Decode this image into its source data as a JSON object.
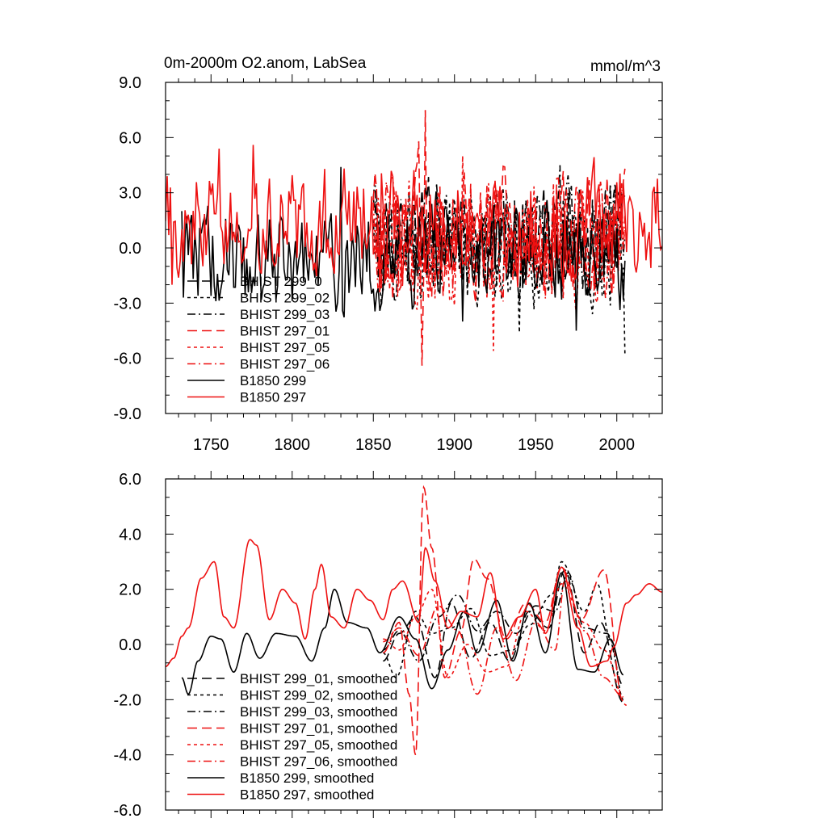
{
  "chart_data": [
    {
      "type": "line",
      "title": "0m-2000m O2.anom, LabSea",
      "units": "mmol/m^3",
      "xlim": [
        1722,
        2028
      ],
      "ylim": [
        -9,
        9
      ],
      "x_ticks": [
        1750,
        1800,
        1850,
        1900,
        1950,
        2000
      ],
      "x_tick_labels": [
        "1750",
        "1800",
        "1850",
        "1900",
        "1950",
        "2000"
      ],
      "y_ticks": [
        9,
        6,
        3,
        0,
        -3,
        -6,
        -9
      ],
      "y_tick_labels": [
        "9.0",
        "6.0",
        "3.0",
        "0.0",
        "-3.0",
        "-6.0",
        "-9.0"
      ],
      "legend_position": "bottom-left",
      "series": [
        {
          "name": "BHIST 299_0",
          "color": "#000000",
          "dash": "long-dash",
          "x_start": 1850,
          "x_end": 2005,
          "seed": 11,
          "amp": 2.2,
          "base": 0.5,
          "features": []
        },
        {
          "name": "BHIST 299_02",
          "color": "#000000",
          "dash": "short-dash",
          "x_start": 1850,
          "x_end": 2005,
          "seed": 23,
          "amp": 2.4,
          "base": 0.3,
          "features": [
            [
              2005,
              -5.8
            ],
            [
              1940,
              -4.6
            ]
          ]
        },
        {
          "name": "BHIST 299_03",
          "color": "#000000",
          "dash": "dash-dot",
          "x_start": 1850,
          "x_end": 2005,
          "seed": 37,
          "amp": 2.2,
          "base": 0.4,
          "features": [
            [
              1965,
              4.5
            ]
          ]
        },
        {
          "name": "BHIST 297_01",
          "color": "#ee1111",
          "dash": "long-dash",
          "x_start": 1850,
          "x_end": 2005,
          "seed": 41,
          "amp": 2.6,
          "base": 0.6,
          "features": [
            [
              1882,
              7.5
            ],
            [
              1878,
              5.8
            ],
            [
              1880,
              -6.4
            ]
          ]
        },
        {
          "name": "BHIST 297_05",
          "color": "#ee1111",
          "dash": "short-dash",
          "x_start": 1850,
          "x_end": 2005,
          "seed": 53,
          "amp": 2.5,
          "base": 0.5,
          "features": [
            [
              1924,
              -5.6
            ],
            [
              1905,
              5.0
            ]
          ]
        },
        {
          "name": "BHIST 297_06",
          "color": "#ee1111",
          "dash": "dash-dot",
          "x_start": 1850,
          "x_end": 2005,
          "seed": 67,
          "amp": 2.4,
          "base": 0.5,
          "features": [
            [
              1990,
              3.6
            ]
          ]
        },
        {
          "name": "B1850 299",
          "color": "#000000",
          "dash": "solid",
          "x_start": 1732,
          "x_end": 2005,
          "seed": 79,
          "amp": 2.0,
          "base": -0.6,
          "features": [
            [
              1732,
              2.0
            ],
            [
              1830,
              4.4
            ],
            [
              1975,
              -4.5
            ],
            [
              1905,
              -4.0
            ]
          ]
        },
        {
          "name": "B1850 297",
          "color": "#ee1111",
          "dash": "solid",
          "x_start": 1722,
          "x_end": 2028,
          "seed": 83,
          "amp": 2.2,
          "base": 1.4,
          "features": [
            [
              1726,
              -2.0
            ],
            [
              1755,
              5.4
            ],
            [
              1776,
              5.6
            ],
            [
              1820,
              4.3
            ],
            [
              1854,
              -2.4
            ],
            [
              2028,
              0.1
            ],
            [
              2022,
              3.0
            ]
          ]
        }
      ]
    },
    {
      "type": "line",
      "title": "",
      "units": "",
      "xlim": [
        1722,
        2028
      ],
      "ylim": [
        -6,
        6
      ],
      "x_ticks": [
        1750,
        1800,
        1850,
        1900,
        1950,
        2000
      ],
      "x_tick_labels": [],
      "y_ticks": [
        6,
        4,
        2,
        0,
        -2,
        -4,
        -6
      ],
      "y_tick_labels": [
        "6.0",
        "4.0",
        "2.0",
        "0.0",
        "-2.0",
        "-4.0",
        "-6.0"
      ],
      "legend_position": "bottom-left",
      "series": [
        {
          "name": "BHIST 299_01, smoothed",
          "color": "#000000",
          "dash": "long-dash",
          "x_start": 1856,
          "x_end": 2004,
          "knots": [
            [
              1856,
              -0.6
            ],
            [
              1866,
              0.4
            ],
            [
              1876,
              1.0
            ],
            [
              1888,
              -1.2
            ],
            [
              1898,
              1.5
            ],
            [
              1910,
              -0.5
            ],
            [
              1922,
              0.8
            ],
            [
              1934,
              -0.6
            ],
            [
              1946,
              1.2
            ],
            [
              1958,
              0.6
            ],
            [
              1968,
              2.7
            ],
            [
              1980,
              -0.3
            ],
            [
              1990,
              0.8
            ],
            [
              2004,
              -2.1
            ]
          ]
        },
        {
          "name": "BHIST 299_02, smoothed",
          "color": "#000000",
          "dash": "short-dash",
          "x_start": 1856,
          "x_end": 2004,
          "knots": [
            [
              1856,
              -0.3
            ],
            [
              1864,
              -1.2
            ],
            [
              1876,
              1.2
            ],
            [
              1886,
              0.4
            ],
            [
              1898,
              0.6
            ],
            [
              1910,
              1.3
            ],
            [
              1922,
              -0.4
            ],
            [
              1936,
              -0.2
            ],
            [
              1946,
              0.7
            ],
            [
              1960,
              1.8
            ],
            [
              1966,
              3.0
            ],
            [
              1980,
              1.2
            ],
            [
              1988,
              2.2
            ],
            [
              1996,
              0.2
            ],
            [
              2004,
              -2.0
            ]
          ]
        },
        {
          "name": "BHIST 299_03, smoothed",
          "color": "#000000",
          "dash": "dash-dot",
          "x_start": 1856,
          "x_end": 2004,
          "knots": [
            [
              1856,
              -0.2
            ],
            [
              1866,
              0.5
            ],
            [
              1878,
              -0.6
            ],
            [
              1890,
              1.0
            ],
            [
              1902,
              1.8
            ],
            [
              1914,
              0.5
            ],
            [
              1926,
              1.2
            ],
            [
              1938,
              0.4
            ],
            [
              1950,
              1.4
            ],
            [
              1962,
              1.2
            ],
            [
              1970,
              2.6
            ],
            [
              1980,
              0.6
            ],
            [
              1994,
              0.4
            ],
            [
              2004,
              -1.5
            ]
          ]
        },
        {
          "name": "BHIST 297_01, smoothed",
          "color": "#ee1111",
          "dash": "long-dash",
          "x_start": 1856,
          "x_end": 2004,
          "knots": [
            [
              1856,
              -0.3
            ],
            [
              1866,
              0.8
            ],
            [
              1872,
              -1.8
            ],
            [
              1876,
              -4.0
            ],
            [
              1881,
              5.7
            ],
            [
              1886,
              3.5
            ],
            [
              1894,
              -1.2
            ],
            [
              1904,
              0.5
            ],
            [
              1912,
              3.1
            ],
            [
              1920,
              2.4
            ],
            [
              1932,
              0.2
            ],
            [
              1944,
              1.5
            ],
            [
              1956,
              0.8
            ],
            [
              1966,
              2.8
            ],
            [
              1978,
              0.9
            ],
            [
              1992,
              2.7
            ],
            [
              2004,
              -2.1
            ]
          ]
        },
        {
          "name": "BHIST 297_05, smoothed",
          "color": "#ee1111",
          "dash": "short-dash",
          "x_start": 1856,
          "x_end": 2006,
          "knots": [
            [
              1856,
              0.2
            ],
            [
              1866,
              -0.2
            ],
            [
              1876,
              1.0
            ],
            [
              1886,
              2.0
            ],
            [
              1896,
              -1.2
            ],
            [
              1908,
              0.0
            ],
            [
              1920,
              -1.0
            ],
            [
              1932,
              -0.8
            ],
            [
              1944,
              1.2
            ],
            [
              1956,
              0.5
            ],
            [
              1966,
              2.2
            ],
            [
              1980,
              0.8
            ],
            [
              1992,
              -0.2
            ],
            [
              2006,
              -2.2
            ]
          ]
        },
        {
          "name": "BHIST 297_06, smoothed",
          "color": "#ee1111",
          "dash": "dash-dot",
          "x_start": 1856,
          "x_end": 2004,
          "knots": [
            [
              1856,
              0.1
            ],
            [
              1866,
              0.6
            ],
            [
              1878,
              -0.4
            ],
            [
              1890,
              1.4
            ],
            [
              1902,
              0.5
            ],
            [
              1914,
              -1.8
            ],
            [
              1926,
              0.6
            ],
            [
              1938,
              -1.3
            ],
            [
              1950,
              0.8
            ],
            [
              1962,
              -0.2
            ],
            [
              1968,
              2.3
            ],
            [
              1980,
              0.5
            ],
            [
              1992,
              -1.2
            ],
            [
              2004,
              -1.9
            ]
          ]
        },
        {
          "name": "B1850 299, smoothed",
          "color": "#000000",
          "dash": "solid",
          "x_start": 1732,
          "x_end": 2004,
          "knots": [
            [
              1732,
              -1.2
            ],
            [
              1736,
              -1.8
            ],
            [
              1742,
              -0.6
            ],
            [
              1750,
              0.3
            ],
            [
              1756,
              0.2
            ],
            [
              1764,
              -1.0
            ],
            [
              1772,
              0.4
            ],
            [
              1780,
              -0.5
            ],
            [
              1790,
              0.4
            ],
            [
              1802,
              0.3
            ],
            [
              1812,
              -0.6
            ],
            [
              1820,
              0.6
            ],
            [
              1826,
              2.0
            ],
            [
              1834,
              0.8
            ],
            [
              1846,
              0.6
            ],
            [
              1854,
              -0.3
            ],
            [
              1866,
              1.0
            ],
            [
              1876,
              0.2
            ],
            [
              1886,
              -1.6
            ],
            [
              1896,
              -0.2
            ],
            [
              1906,
              1.2
            ],
            [
              1914,
              -0.3
            ],
            [
              1926,
              1.6
            ],
            [
              1936,
              -0.6
            ],
            [
              1946,
              1.5
            ],
            [
              1956,
              -0.3
            ],
            [
              1966,
              2.6
            ],
            [
              1976,
              -0.9
            ],
            [
              1986,
              -1.0
            ],
            [
              1996,
              0.2
            ],
            [
              2004,
              -1.1
            ]
          ]
        },
        {
          "name": "B1850 297, smoothed",
          "color": "#ee1111",
          "dash": "solid",
          "x_start": 1722,
          "x_end": 2028,
          "knots": [
            [
              1722,
              -0.8
            ],
            [
              1727,
              -0.5
            ],
            [
              1732,
              0.3
            ],
            [
              1736,
              0.6
            ],
            [
              1744,
              2.4
            ],
            [
              1752,
              3.0
            ],
            [
              1758,
              1.0
            ],
            [
              1764,
              0.6
            ],
            [
              1774,
              3.8
            ],
            [
              1778,
              3.6
            ],
            [
              1786,
              0.9
            ],
            [
              1794,
              2.0
            ],
            [
              1802,
              1.5
            ],
            [
              1808,
              0.2
            ],
            [
              1814,
              2.0
            ],
            [
              1818,
              2.9
            ],
            [
              1824,
              1.0
            ],
            [
              1832,
              0.6
            ],
            [
              1840,
              2.0
            ],
            [
              1848,
              1.6
            ],
            [
              1856,
              0.9
            ],
            [
              1862,
              2.0
            ],
            [
              1868,
              2.3
            ],
            [
              1878,
              0.8
            ],
            [
              1882,
              3.5
            ],
            [
              1888,
              2.3
            ],
            [
              1896,
              0.6
            ],
            [
              1904,
              1.2
            ],
            [
              1914,
              1.0
            ],
            [
              1922,
              2.6
            ],
            [
              1930,
              0.2
            ],
            [
              1940,
              1.0
            ],
            [
              1950,
              2.0
            ],
            [
              1956,
              0.4
            ],
            [
              1966,
              2.8
            ],
            [
              1976,
              0.6
            ],
            [
              1984,
              -0.8
            ],
            [
              1994,
              -0.6
            ],
            [
              1998,
              -0.1
            ],
            [
              2006,
              1.5
            ],
            [
              2012,
              1.8
            ],
            [
              2020,
              2.2
            ],
            [
              2028,
              1.9
            ]
          ]
        }
      ]
    }
  ]
}
